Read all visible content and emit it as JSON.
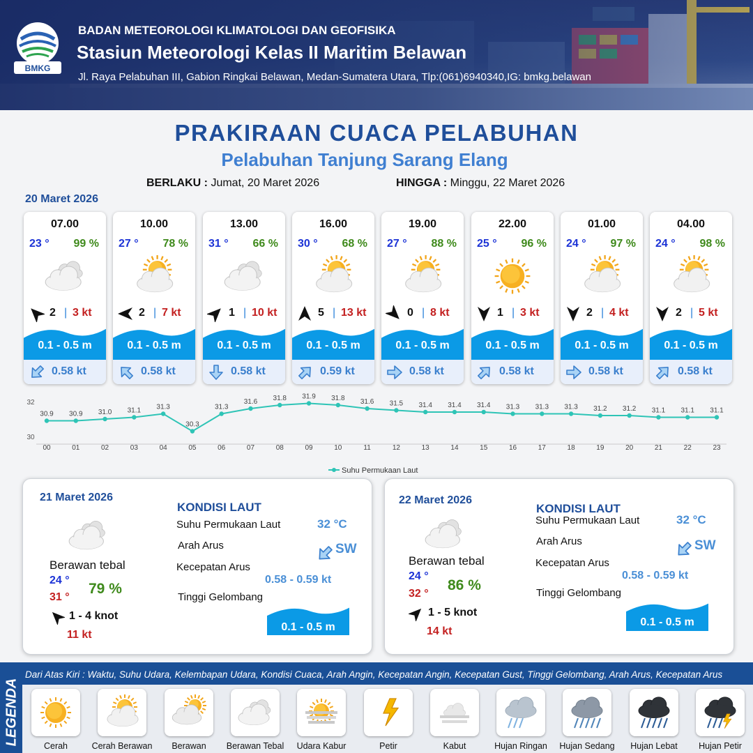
{
  "colors": {
    "brand_blue": "#1f4e9a",
    "title_light_blue": "#3f7fd1",
    "temp_blue": "#1c33d6",
    "humidity_green": "#3f8a1c",
    "gust_red": "#c32020",
    "wave_blue": "#0b9ae6",
    "current_blue": "#4a8fd6",
    "chart_line": "#2ec4b6"
  },
  "header": {
    "agency": "BADAN METEOROLOGI KLIMATOLOGI DAN GEOFISIKA",
    "station": "Stasiun Meteorologi Kelas II Maritim Belawan",
    "address": "Jl. Raya Pelabuhan III, Gabion Ringkai Belawan, Medan-Sumatera Utara, Tlp:(061)6940340,IG: bmkg.belawan",
    "logo_text": "BMKG"
  },
  "title": "PRAKIRAAN CUACA PELABUHAN",
  "subtitle": "Pelabuhan Tanjung Sarang Elang",
  "validity": {
    "from_label": "BERLAKU :",
    "from_value": "Jumat, 20 Maret 2026",
    "to_label": "HINGGA :",
    "to_value": "Minggu, 22 Maret 2026"
  },
  "forecast_date": "20 Maret 2026",
  "hourly": [
    {
      "time": "07.00",
      "temp": "23 °",
      "humidity": "99 %",
      "icon": "berawan-tebal-icon",
      "wind_dir_deg": 315,
      "wind_speed": "2",
      "gust": "3 kt",
      "wave": "0.1 - 0.5 m",
      "current_dir_deg": 225,
      "current_speed": "0.58 kt"
    },
    {
      "time": "10.00",
      "temp": "27 °",
      "humidity": "78 %",
      "icon": "cerah-berawan-icon",
      "wind_dir_deg": 270,
      "wind_speed": "2",
      "gust": "7 kt",
      "wave": "0.1 - 0.5 m",
      "current_dir_deg": 315,
      "current_speed": "0.58 kt"
    },
    {
      "time": "13.00",
      "temp": "31 °",
      "humidity": "66 %",
      "icon": "berawan-tebal-icon",
      "wind_dir_deg": 45,
      "wind_speed": "1",
      "gust": "10 kt",
      "wave": "0.1 - 0.5 m",
      "current_dir_deg": 180,
      "current_speed": "0.58 kt"
    },
    {
      "time": "16.00",
      "temp": "30 °",
      "humidity": "68 %",
      "icon": "cerah-berawan-icon",
      "wind_dir_deg": 0,
      "wind_speed": "5",
      "gust": "13 kt",
      "wave": "0.1 - 0.5 m",
      "current_dir_deg": 45,
      "current_speed": "0.59 kt"
    },
    {
      "time": "19.00",
      "temp": "27 °",
      "humidity": "88 %",
      "icon": "cerah-berawan-icon",
      "wind_dir_deg": 135,
      "wind_speed": "0",
      "gust": "8 kt",
      "wave": "0.1 - 0.5 m",
      "current_dir_deg": 90,
      "current_speed": "0.58 kt"
    },
    {
      "time": "22.00",
      "temp": "25 °",
      "humidity": "96 %",
      "icon": "cerah-icon",
      "wind_dir_deg": 180,
      "wind_speed": "1",
      "gust": "3 kt",
      "wave": "0.1 - 0.5 m",
      "current_dir_deg": 45,
      "current_speed": "0.58 kt"
    },
    {
      "time": "01.00",
      "temp": "24 °",
      "humidity": "97 %",
      "icon": "cerah-berawan-icon",
      "wind_dir_deg": 180,
      "wind_speed": "2",
      "gust": "4 kt",
      "wave": "0.1 - 0.5 m",
      "current_dir_deg": 90,
      "current_speed": "0.58 kt"
    },
    {
      "time": "04.00",
      "temp": "24 °",
      "humidity": "98 %",
      "icon": "cerah-berawan-icon",
      "wind_dir_deg": 180,
      "wind_speed": "2",
      "gust": "5 kt",
      "wave": "0.1 - 0.5 m",
      "current_dir_deg": 45,
      "current_speed": "0.58 kt"
    }
  ],
  "chart_data": {
    "type": "line",
    "title": "",
    "xlabel": "",
    "ylabel": "",
    "x": [
      "00",
      "01",
      "02",
      "03",
      "04",
      "05",
      "06",
      "07",
      "08",
      "09",
      "10",
      "11",
      "12",
      "13",
      "14",
      "15",
      "16",
      "17",
      "18",
      "19",
      "20",
      "21",
      "22",
      "23"
    ],
    "series": [
      {
        "name": "Suhu Permukaan Laut",
        "values": [
          30.9,
          30.9,
          31.0,
          31.1,
          31.3,
          30.3,
          31.3,
          31.6,
          31.8,
          31.9,
          31.8,
          31.6,
          31.5,
          31.4,
          31.4,
          31.4,
          31.3,
          31.3,
          31.3,
          31.2,
          31.2,
          31.1,
          31.1,
          31.1
        ]
      }
    ],
    "ylim": [
      30,
      32
    ],
    "yticks": [
      "32",
      "30"
    ],
    "grid": false,
    "legend": "bottom-center"
  },
  "days": [
    {
      "date": "21 Maret 2026",
      "condition": "Berawan tebal",
      "tmin": "24 °",
      "tmax": "31 °",
      "humidity": "79 %",
      "wind_dir_deg": 315,
      "wind": "1  - 4 knot",
      "gust": "11 kt",
      "kondisi_title": "KONDISI LAUT",
      "sst_label": "Suhu Permukaan Laut",
      "sst": "32 °C",
      "arah_label": "Arah Arus",
      "arah": "SW",
      "current_dir_deg": 225,
      "kec_label": "Kecepatan Arus",
      "kec": "0.58 - 0.59 kt",
      "wave_label": "Tinggi Gelombang",
      "wave": "0.1 - 0.5 m"
    },
    {
      "date": "22 Maret 2026",
      "condition": "Berawan tebal",
      "tmin": "24 °",
      "tmax": "32 °",
      "humidity": "86 %",
      "wind_dir_deg": 45,
      "wind": "1  - 5 knot",
      "gust": "14 kt",
      "kondisi_title": "KONDISI LAUT",
      "sst_label": "Suhu Permukaan Laut",
      "sst": "32 °C",
      "arah_label": "Arah Arus",
      "arah": "SW",
      "current_dir_deg": 225,
      "kec_label": "Kecepatan Arus",
      "kec": "0.58  - 0.59 kt",
      "wave_label": "Tinggi Gelombang",
      "wave": "0.1 - 0.5 m"
    }
  ],
  "legend": {
    "side_label": "LEGENDA",
    "note": "Dari Atas Kiri : Waktu, Suhu Udara, Kelembapan Udara, Kondisi Cuaca, Arah Angin, Kecepatan Angin, Kecepatan Gust, Tinggi Gelombang, Arah Arus, Kecepatan Arus",
    "items": [
      {
        "label": "Cerah",
        "icon": "cerah-icon"
      },
      {
        "label": "Cerah Berawan",
        "icon": "cerah-berawan-icon"
      },
      {
        "label": "Berawan",
        "icon": "berawan-icon"
      },
      {
        "label": "Berawan Tebal",
        "icon": "berawan-tebal-icon"
      },
      {
        "label": "Udara Kabur",
        "icon": "udara-kabur-icon"
      },
      {
        "label": "Petir",
        "icon": "petir-icon"
      },
      {
        "label": "Kabut",
        "icon": "kabut-icon"
      },
      {
        "label": "Hujan Ringan",
        "icon": "hujan-ringan-icon"
      },
      {
        "label": "Hujan Sedang",
        "icon": "hujan-sedang-icon"
      },
      {
        "label": "Hujan Lebat",
        "icon": "hujan-lebat-icon"
      },
      {
        "label": "Hujan Petir",
        "icon": "hujan-petir-icon"
      }
    ]
  }
}
